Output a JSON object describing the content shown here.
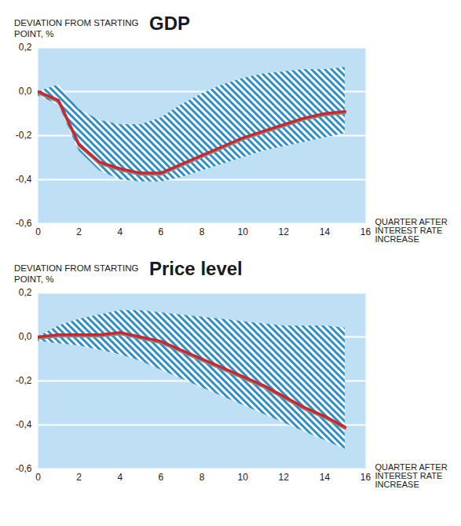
{
  "chart_data": [
    {
      "type": "line",
      "title": "GDP",
      "y_label": "DEVIATION FROM STARTING POINT, %",
      "x_label": "QUARTER AFTER INTEREST RATE INCREASE",
      "x": [
        0,
        1,
        2,
        3,
        4,
        5,
        6,
        7,
        8,
        9,
        10,
        11,
        12,
        13,
        14,
        15
      ],
      "values": [
        0.0,
        -0.04,
        -0.24,
        -0.32,
        -0.35,
        -0.37,
        -0.37,
        -0.33,
        -0.29,
        -0.25,
        -0.21,
        -0.18,
        -0.15,
        -0.12,
        -0.1,
        -0.09
      ],
      "color": "#c8282e",
      "band": {
        "lower": [
          -0.02,
          -0.06,
          -0.27,
          -0.36,
          -0.4,
          -0.41,
          -0.41,
          -0.39,
          -0.36,
          -0.33,
          -0.3,
          -0.27,
          -0.25,
          -0.23,
          -0.21,
          -0.19
        ],
        "upper": [
          0.0,
          0.03,
          -0.08,
          -0.13,
          -0.15,
          -0.15,
          -0.12,
          -0.06,
          -0.01,
          0.03,
          0.06,
          0.08,
          0.09,
          0.1,
          0.1,
          0.11
        ],
        "color": "#2f8fc4"
      },
      "xlim": [
        0,
        16
      ],
      "xticks": [
        0,
        2,
        4,
        6,
        8,
        10,
        12,
        14,
        16
      ],
      "ylim": [
        -0.6,
        0.2
      ],
      "yticks": [
        {
          "value": -0.6,
          "label": "-0,6"
        },
        {
          "value": -0.4,
          "label": "-0,4"
        },
        {
          "value": -0.2,
          "label": "-0,2"
        },
        {
          "value": 0.0,
          "label": "0,0"
        },
        {
          "value": 0.2,
          "label": "0,2"
        }
      ],
      "grid": true
    },
    {
      "type": "line",
      "title": "Price level",
      "y_label": "DEVIATION FROM STARTING POINT, %",
      "x_label": "QUARTER AFTER INTEREST RATE INCREASE",
      "x": [
        0,
        1,
        2,
        3,
        4,
        5,
        6,
        7,
        8,
        9,
        10,
        11,
        12,
        13,
        14,
        15
      ],
      "values": [
        0.0,
        0.01,
        0.01,
        0.01,
        0.02,
        0.0,
        -0.02,
        -0.06,
        -0.1,
        -0.14,
        -0.18,
        -0.22,
        -0.27,
        -0.32,
        -0.36,
        -0.41
      ],
      "color": "#c8282e",
      "band": {
        "lower": [
          -0.02,
          -0.03,
          -0.04,
          -0.06,
          -0.08,
          -0.11,
          -0.15,
          -0.19,
          -0.23,
          -0.27,
          -0.31,
          -0.35,
          -0.39,
          -0.43,
          -0.47,
          -0.51
        ],
        "upper": [
          0.0,
          0.05,
          0.08,
          0.1,
          0.12,
          0.12,
          0.11,
          0.1,
          0.09,
          0.08,
          0.07,
          0.06,
          0.05,
          0.05,
          0.05,
          0.04
        ],
        "color": "#2f8fc4"
      },
      "xlim": [
        0,
        16
      ],
      "xticks": [
        0,
        2,
        4,
        6,
        8,
        10,
        12,
        14,
        16
      ],
      "ylim": [
        -0.6,
        0.2
      ],
      "yticks": [
        {
          "value": -0.6,
          "label": "-0,6"
        },
        {
          "value": -0.4,
          "label": "-0,4"
        },
        {
          "value": -0.2,
          "label": "-0,2"
        },
        {
          "value": 0.0,
          "label": "0,0"
        },
        {
          "value": 0.2,
          "label": "0,2"
        }
      ],
      "grid": true
    }
  ]
}
